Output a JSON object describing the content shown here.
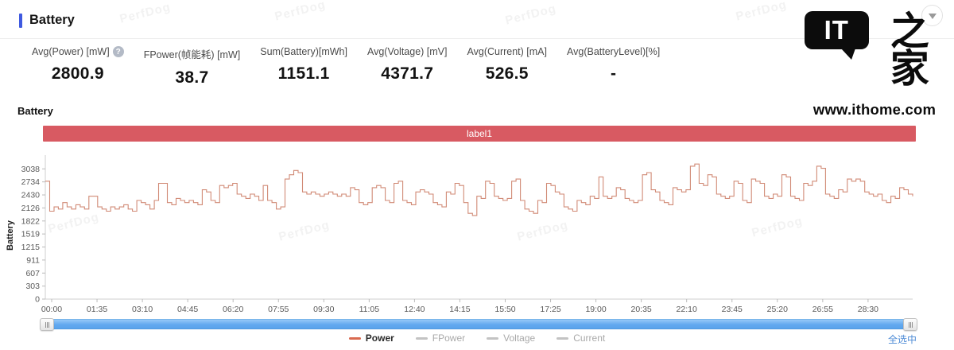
{
  "header": {
    "title": "Battery"
  },
  "logo": {
    "it": "IT",
    "zhijia": "之家",
    "url": "www.ithome.com"
  },
  "stats": [
    {
      "label": "Avg(Power) [mW]",
      "value": "2800.9",
      "has_help": true
    },
    {
      "label": "FPower(帧能耗) [mW]",
      "value": "38.7",
      "has_help": false
    },
    {
      "label": "Sum(Battery)[mWh]",
      "value": "1151.1",
      "has_help": false
    },
    {
      "label": "Avg(Voltage) [mV]",
      "value": "4371.7",
      "has_help": false
    },
    {
      "label": "Avg(Current) [mA]",
      "value": "526.5",
      "has_help": false
    },
    {
      "label": "Avg(BatteryLevel)[%]",
      "value": "-",
      "has_help": false
    }
  ],
  "section": {
    "title": "Battery",
    "banner_label": "label1",
    "banner_color": "#d85a62"
  },
  "watermark": {
    "text": "PerfDog"
  },
  "chart_data": {
    "type": "line",
    "title": "Battery",
    "ylabel": "Battery",
    "step": true,
    "grid": false,
    "ylim": [
      0,
      3340
    ],
    "y_ticks": [
      3038,
      2734,
      2430,
      2126,
      1822,
      1519,
      1215,
      911,
      607,
      303,
      0
    ],
    "x_ticks": [
      "00:00",
      "01:35",
      "03:10",
      "04:45",
      "06:20",
      "07:55",
      "09:30",
      "11:05",
      "12:40",
      "14:15",
      "15:50",
      "17:25",
      "19:00",
      "20:35",
      "22:10",
      "23:45",
      "25:20",
      "26:55",
      "28:30"
    ],
    "series": [
      {
        "name": "Power",
        "color": "#d18a76",
        "values": [
          2750,
          2050,
          2150,
          2100,
          2250,
          2150,
          2100,
          2200,
          2150,
          2100,
          2400,
          2400,
          2150,
          2100,
          2050,
          2150,
          2100,
          2150,
          2200,
          2100,
          2050,
          2300,
          2250,
          2200,
          2100,
          2300,
          2700,
          2700,
          2250,
          2200,
          2350,
          2300,
          2250,
          2300,
          2250,
          2200,
          2550,
          2500,
          2300,
          2250,
          2650,
          2600,
          2650,
          2700,
          2450,
          2400,
          2350,
          2450,
          2400,
          2300,
          2650,
          2300,
          2250,
          2100,
          2150,
          2800,
          2900,
          3000,
          2950,
          2500,
          2450,
          2500,
          2450,
          2400,
          2450,
          2500,
          2450,
          2400,
          2450,
          2400,
          2600,
          2550,
          2250,
          2200,
          2250,
          2600,
          2650,
          2600,
          2300,
          2250,
          2700,
          2750,
          2300,
          2250,
          2200,
          2500,
          2550,
          2500,
          2450,
          2250,
          2200,
          2150,
          2500,
          2450,
          2700,
          2650,
          2250,
          2000,
          1950,
          2400,
          2350,
          2750,
          2700,
          2400,
          2350,
          2300,
          2350,
          2750,
          2800,
          2300,
          2100,
          2050,
          2000,
          2300,
          2250,
          2700,
          2650,
          2500,
          2450,
          2150,
          2100,
          2050,
          2300,
          2250,
          2200,
          2400,
          2350,
          2850,
          2400,
          2350,
          2400,
          2600,
          2550,
          2350,
          2300,
          2250,
          2300,
          2900,
          2950,
          2550,
          2500,
          2300,
          2250,
          2200,
          2600,
          2550,
          2500,
          2550,
          3100,
          3150,
          2700,
          2650,
          2900,
          2850,
          2450,
          2400,
          2350,
          2400,
          2750,
          2700,
          2300,
          2250,
          2800,
          2750,
          2700,
          2400,
          2350,
          2450,
          2400,
          2900,
          2850,
          2400,
          2350,
          2300,
          2700,
          2650,
          2750,
          3100,
          3050,
          2450,
          2400,
          2350,
          2550,
          2500,
          2800,
          2750,
          2800,
          2750,
          2500,
          2450,
          2400,
          2450,
          2300,
          2250,
          2400,
          2350,
          2600,
          2550,
          2450,
          2400
        ]
      }
    ]
  },
  "legend": [
    {
      "label": "Power",
      "color": "#d96a50",
      "active": true
    },
    {
      "label": "FPower",
      "color": "#c3c3c3",
      "active": false
    },
    {
      "label": "Voltage",
      "color": "#c3c3c3",
      "active": false
    },
    {
      "label": "Current",
      "color": "#c3c3c3",
      "active": false
    }
  ],
  "footer": {
    "select_all": "全选中"
  }
}
